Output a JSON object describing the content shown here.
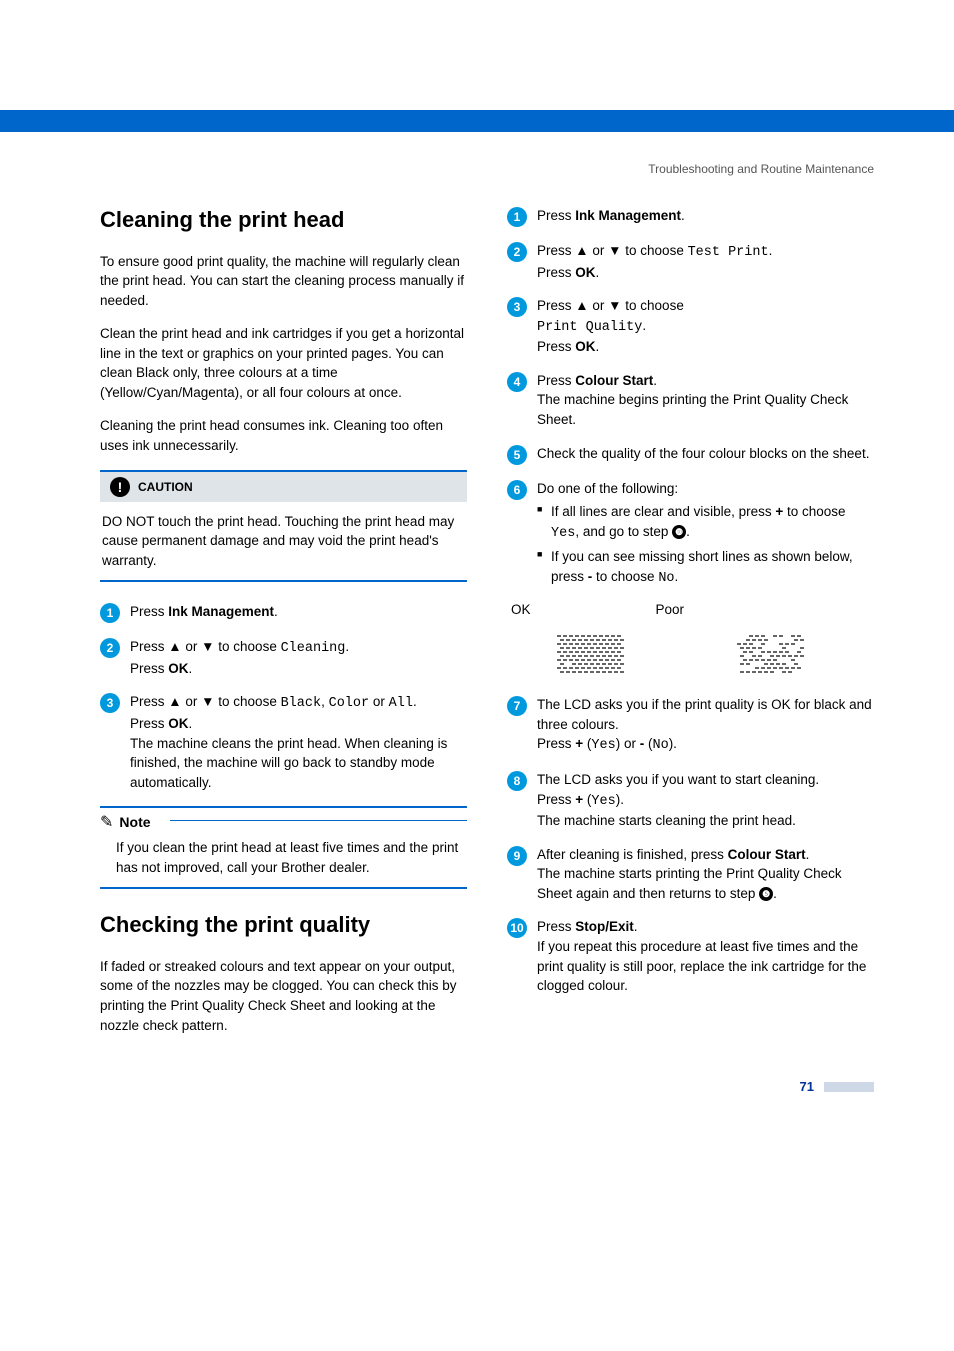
{
  "running_head": "Troubleshooting and Routine Maintenance",
  "page_number": "71",
  "colors": {
    "accent": "#0066cc",
    "step_bg": "#0099dd",
    "step_text": "#ffffff",
    "ref_circle_bg": "#000000",
    "page_num_color": "#003399",
    "page_bar_color": "#cfd8e6"
  },
  "left": {
    "h1": "Cleaning the print head",
    "p1": "To ensure good print quality, the machine will regularly clean the print head. You can start the cleaning process manually if needed.",
    "p2": "Clean the print head and ink cartridges if you get a horizontal line in the text or graphics on your printed pages. You can clean Black only, three colours at a time (Yellow/Cyan/Magenta), or all four colours at once.",
    "p3": "Cleaning the print head consumes ink. Cleaning too often uses ink unnecessarily.",
    "caution_label": "CAUTION",
    "caution_body": "DO NOT touch the print head. Touching the print head may cause permanent damage and may void the print head's warranty.",
    "steps": [
      {
        "num": "1",
        "html": "Press <b>Ink Management</b>."
      },
      {
        "num": "2",
        "html": "Press <span class='arrow'>▲</span> or <span class='arrow'>▼</span> to choose <span class='mono'>Cleaning</span>.<br>Press <b>OK</b>."
      },
      {
        "num": "3",
        "html": "Press <span class='arrow'>▲</span> or <span class='arrow'>▼</span> to choose <span class='mono'>Black</span>, <span class='mono'>Color</span> or <span class='mono'>All</span>.<br>Press <b>OK</b>.<br>The machine cleans the print head. When cleaning is finished, the machine will go back to standby mode automatically."
      }
    ],
    "note_label": "Note",
    "note_body": "If you clean the print head at least five times and the print has not improved, call your Brother dealer.",
    "h2": "Checking the print quality",
    "p4": "If faded or streaked colours and text appear on your output, some of the nozzles may be clogged. You can check this by printing the Print Quality Check Sheet and looking at the nozzle check pattern."
  },
  "right": {
    "steps": [
      {
        "num": "1",
        "html": "Press <b>Ink Management</b>."
      },
      {
        "num": "2",
        "html": "Press <span class='arrow'>▲</span> or <span class='arrow'>▼</span> to choose <span class='mono'>Test Print</span>.<br>Press <b>OK</b>."
      },
      {
        "num": "3",
        "html": "Press <span class='arrow'>▲</span> or <span class='arrow'>▼</span> to choose<br><span class='mono'>Print Quality</span>.<br>Press <b>OK</b>."
      },
      {
        "num": "4",
        "html": "Press <b>Colour Start</b>.<br>The machine begins printing the Print Quality Check Sheet."
      },
      {
        "num": "5",
        "html": "Check the quality of the four colour blocks on the sheet."
      },
      {
        "num": "6",
        "html": "Do one of the following:<div class='sub-bullet'>If all lines are clear and visible, press <b>+</b> to choose <span class='mono'>Yes</span>, and go to step <span class='ref-circle'>❿</span>.</div><div class='sub-bullet'>If you can see missing short lines as shown below, press <b>-</b> to choose <span class='mono'>No</span>.</div>"
      }
    ],
    "ok_label": "OK",
    "poor_label": "Poor",
    "steps2": [
      {
        "num": "7",
        "html": "The LCD asks you if the print quality is OK for black and three colours.<br>Press <b>+</b> (<span class='mono'>Yes</span>) or <b>-</b> (<span class='mono'>No</span>)."
      },
      {
        "num": "8",
        "html": "The LCD asks you if you want to start cleaning.<br>Press <b>+</b> (<span class='mono'>Yes</span>).<br>The machine starts cleaning the print head."
      },
      {
        "num": "9",
        "html": "After cleaning is finished, press <b>Colour Start</b>.<br>The machine starts printing the Print Quality Check Sheet again and then returns to step <span class='ref-circle'>❺</span>."
      },
      {
        "num": "10",
        "html": "Press <b>Stop/Exit</b>.<br>If you repeat this procedure at least five times and the print quality is still poor, replace the ink cartridge for the clogged colour."
      }
    ]
  }
}
